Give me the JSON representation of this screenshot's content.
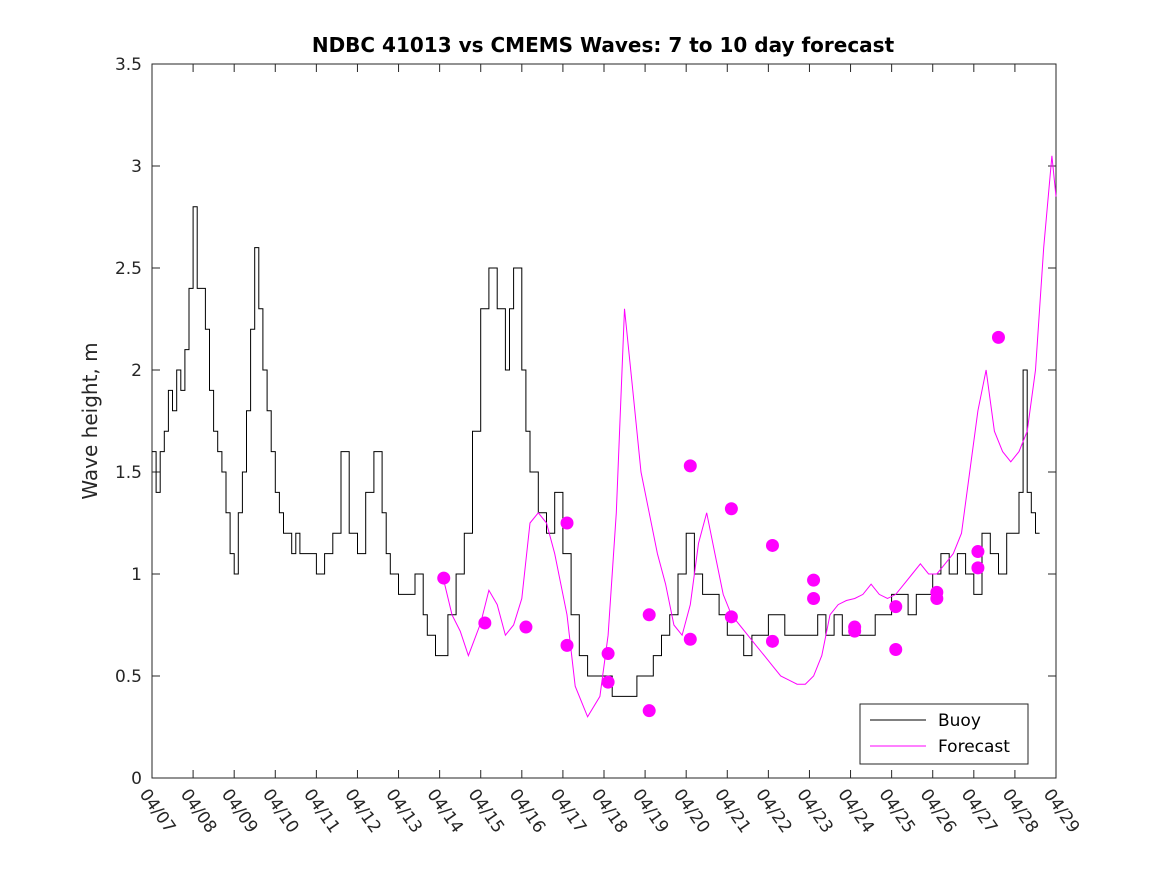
{
  "chart_data": {
    "type": "line",
    "title": "NDBC 41013 vs CMEMS Waves: 7 to 10 day forecast",
    "xlabel": "",
    "ylabel": "Wave height, m",
    "xlim": [
      "04/07",
      "04/29"
    ],
    "ylim": [
      0,
      3.5
    ],
    "x_tick_labels": [
      "04/07",
      "04/08",
      "04/09",
      "04/10",
      "04/11",
      "04/12",
      "04/13",
      "04/14",
      "04/15",
      "04/16",
      "04/17",
      "04/18",
      "04/19",
      "04/20",
      "04/21",
      "04/22",
      "04/23",
      "04/24",
      "04/25",
      "04/26",
      "04/27",
      "04/28",
      "04/29"
    ],
    "y_tick_labels": [
      "0",
      "0.5",
      "1",
      "1.5",
      "2",
      "2.5",
      "3",
      "3.5"
    ],
    "y_ticks": [
      0,
      0.5,
      1,
      1.5,
      2,
      2.5,
      3,
      3.5
    ],
    "legend_position": "bottom-right",
    "grid": false,
    "colors": {
      "buoy": "#000000",
      "forecast": "#ff00ff"
    },
    "series": [
      {
        "name": "Buoy",
        "x_days_from_04_07": [
          0.0,
          0.1,
          0.2,
          0.3,
          0.4,
          0.5,
          0.6,
          0.7,
          0.8,
          0.9,
          1.0,
          1.1,
          1.2,
          1.3,
          1.4,
          1.5,
          1.6,
          1.7,
          1.8,
          1.9,
          2.0,
          2.1,
          2.2,
          2.3,
          2.4,
          2.5,
          2.6,
          2.7,
          2.8,
          2.9,
          3.0,
          3.1,
          3.2,
          3.3,
          3.4,
          3.5,
          3.6,
          3.7,
          3.8,
          3.9,
          4.0,
          4.2,
          4.4,
          4.6,
          4.8,
          5.0,
          5.2,
          5.4,
          5.6,
          5.7,
          5.8,
          6.0,
          6.2,
          6.4,
          6.6,
          6.7,
          6.8,
          6.9,
          7.0,
          7.2,
          7.4,
          7.6,
          7.8,
          8.0,
          8.2,
          8.4,
          8.6,
          8.7,
          8.8,
          9.0,
          9.1,
          9.2,
          9.4,
          9.6,
          9.8,
          10.0,
          10.2,
          10.4,
          10.6,
          10.8,
          11.0,
          11.2,
          11.4,
          11.6,
          11.8,
          12.0,
          12.2,
          12.4,
          12.6,
          12.8,
          13.0,
          13.2,
          13.4,
          13.6,
          13.8,
          14.0,
          14.2,
          14.4,
          14.6,
          14.8,
          15.0,
          15.2,
          15.4,
          15.6,
          15.8,
          16.0,
          16.2,
          16.4,
          16.6,
          16.8,
          17.0,
          17.2,
          17.4,
          17.6,
          17.8,
          18.0,
          18.2,
          18.4,
          18.6,
          18.8,
          19.0,
          19.2,
          19.4,
          19.6,
          19.8,
          20.0,
          20.2,
          20.4,
          20.6,
          20.8,
          21.0,
          21.1,
          21.2,
          21.3,
          21.4,
          21.5,
          21.6
        ],
        "y": [
          1.6,
          1.4,
          1.6,
          1.7,
          1.9,
          1.8,
          2.0,
          1.9,
          2.1,
          2.4,
          2.8,
          2.4,
          2.4,
          2.2,
          1.9,
          1.7,
          1.6,
          1.5,
          1.3,
          1.1,
          1.0,
          1.3,
          1.5,
          1.8,
          2.2,
          2.6,
          2.3,
          2.0,
          1.8,
          1.6,
          1.4,
          1.3,
          1.2,
          1.2,
          1.1,
          1.2,
          1.1,
          1.1,
          1.1,
          1.1,
          1.0,
          1.1,
          1.2,
          1.6,
          1.2,
          1.1,
          1.4,
          1.6,
          1.3,
          1.1,
          1.0,
          0.9,
          0.9,
          1.0,
          0.8,
          0.7,
          0.7,
          0.6,
          0.6,
          0.8,
          1.0,
          1.2,
          1.7,
          2.3,
          2.5,
          2.3,
          2.0,
          2.3,
          2.5,
          2.0,
          1.7,
          1.5,
          1.3,
          1.2,
          1.4,
          1.1,
          0.8,
          0.6,
          0.5,
          0.5,
          0.5,
          0.4,
          0.4,
          0.4,
          0.5,
          0.5,
          0.6,
          0.7,
          0.8,
          1.0,
          1.2,
          1.0,
          0.9,
          0.9,
          0.8,
          0.7,
          0.7,
          0.6,
          0.7,
          0.7,
          0.8,
          0.8,
          0.7,
          0.7,
          0.7,
          0.7,
          0.8,
          0.7,
          0.8,
          0.7,
          0.7,
          0.7,
          0.7,
          0.8,
          0.8,
          0.9,
          0.9,
          0.8,
          0.9,
          0.9,
          1.0,
          1.1,
          1.0,
          1.1,
          1.0,
          0.9,
          1.2,
          1.1,
          1.0,
          1.2,
          1.2,
          1.4,
          2.0,
          1.4,
          1.3,
          1.2,
          1.2
        ]
      },
      {
        "name": "Forecast",
        "x_days_from_04_07": [
          7.1,
          7.3,
          7.5,
          7.7,
          8.0,
          8.2,
          8.4,
          8.6,
          8.8,
          9.0,
          9.2,
          9.4,
          9.6,
          9.8,
          10.1,
          10.3,
          10.6,
          10.9,
          11.1,
          11.3,
          11.5,
          11.7,
          11.9,
          12.1,
          12.3,
          12.5,
          12.7,
          12.9,
          13.1,
          13.3,
          13.5,
          13.7,
          13.9,
          14.1,
          14.3,
          14.5,
          14.7,
          14.9,
          15.1,
          15.3,
          15.5,
          15.7,
          15.9,
          16.1,
          16.3,
          16.5,
          16.7,
          16.9,
          17.1,
          17.3,
          17.5,
          17.7,
          17.9,
          18.1,
          18.3,
          18.5,
          18.7,
          18.9,
          19.1,
          19.3,
          19.5,
          19.7,
          19.9,
          20.1,
          20.3,
          20.5,
          20.7,
          20.9,
          21.1,
          21.3,
          21.5,
          21.7,
          21.9,
          22.0
        ],
        "y": [
          0.97,
          0.8,
          0.72,
          0.6,
          0.76,
          0.92,
          0.85,
          0.7,
          0.75,
          0.88,
          1.25,
          1.3,
          1.25,
          1.1,
          0.8,
          0.45,
          0.3,
          0.4,
          0.7,
          1.3,
          2.3,
          1.9,
          1.5,
          1.3,
          1.1,
          0.95,
          0.75,
          0.7,
          0.85,
          1.15,
          1.3,
          1.1,
          0.9,
          0.8,
          0.75,
          0.7,
          0.65,
          0.6,
          0.55,
          0.5,
          0.48,
          0.46,
          0.46,
          0.5,
          0.6,
          0.8,
          0.85,
          0.87,
          0.88,
          0.9,
          0.95,
          0.9,
          0.88,
          0.9,
          0.95,
          1.0,
          1.05,
          1.0,
          1.0,
          1.05,
          1.1,
          1.2,
          1.5,
          1.8,
          2.0,
          1.7,
          1.6,
          1.55,
          1.6,
          1.7,
          2.0,
          2.6,
          3.05,
          2.85
        ]
      }
    ],
    "forecast_markers": {
      "x_days_from_04_07": [
        7.1,
        8.1,
        9.1,
        10.1,
        10.1,
        11.1,
        11.1,
        12.1,
        12.1,
        13.1,
        13.1,
        14.1,
        14.1,
        15.1,
        15.1,
        16.1,
        16.1,
        17.1,
        17.1,
        18.1,
        18.1,
        19.1,
        19.1,
        20.1,
        20.1,
        20.6
      ],
      "y": [
        0.98,
        0.76,
        0.74,
        1.25,
        0.65,
        0.61,
        0.47,
        0.33,
        0.8,
        0.68,
        1.53,
        1.32,
        0.79,
        0.67,
        1.14,
        0.97,
        0.88,
        0.72,
        0.74,
        0.63,
        0.84,
        0.88,
        0.91,
        1.11,
        1.03,
        2.16
      ]
    }
  }
}
